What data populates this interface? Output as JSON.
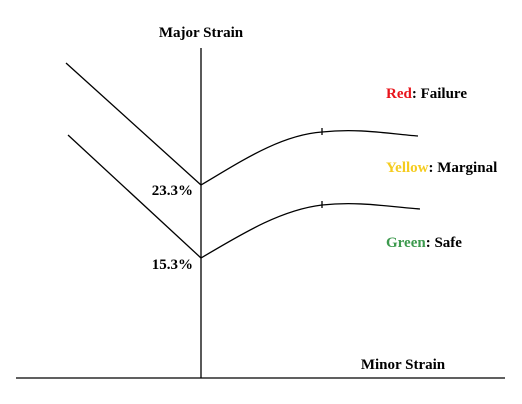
{
  "axes": {
    "y_title": "Major Strain",
    "x_title": "Minor Strain"
  },
  "curves": [
    {
      "plane_strain_value": "23.3%"
    },
    {
      "plane_strain_value": "15.3%"
    }
  ],
  "legend": [
    {
      "color_name": "Red",
      "color": "#e8141b",
      "meaning": ": Failure"
    },
    {
      "color_name": "Yellow",
      "color": "#f5cc1f",
      "meaning": ": Marginal"
    },
    {
      "color_name": "Green",
      "color": "#3d9a4e",
      "meaning": ": Safe"
    }
  ]
}
